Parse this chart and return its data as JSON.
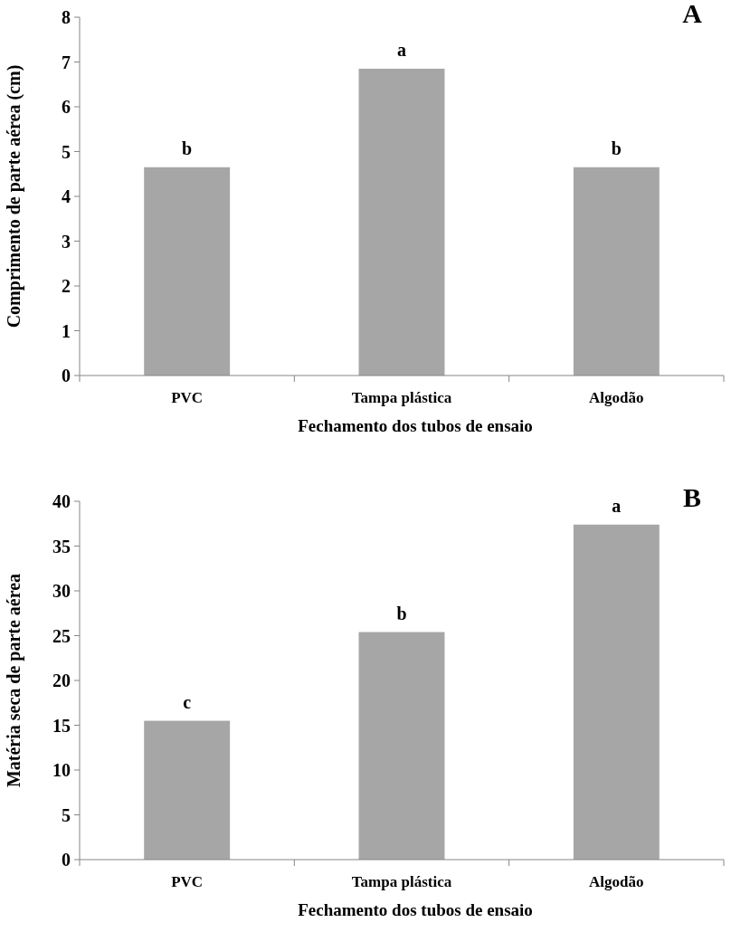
{
  "chart_data": [
    {
      "type": "bar",
      "title": "A",
      "categories": [
        "PVC",
        "Tampa plástica",
        "Algodão"
      ],
      "values": [
        4.65,
        6.85,
        4.65
      ],
      "color": "#a6a6a6",
      "ylim": [
        0,
        8
      ],
      "yticks": [
        0,
        1,
        2,
        3,
        4,
        5,
        6,
        7,
        8
      ],
      "ylabel": "Comprimento de parte aérea (cm)",
      "xlabel": "Fechamento dos tubos de ensaio",
      "grid": false,
      "annotations": [
        {
          "text": "b",
          "x": "PVC",
          "y": 4.65
        },
        {
          "text": "a",
          "x": "Tampa plástica",
          "y": 6.85
        },
        {
          "text": "b",
          "x": "Algodão",
          "y": 4.65
        }
      ]
    },
    {
      "type": "bar",
      "title": "B",
      "categories": [
        "PVC",
        "Tampa plástica",
        "Algodão"
      ],
      "values": [
        15.5,
        25.4,
        37.4
      ],
      "color": "#a6a6a6",
      "ylim": [
        0,
        40
      ],
      "yticks": [
        0,
        5,
        10,
        15,
        20,
        25,
        30,
        35,
        40
      ],
      "ylabel": "Matéria seca de parte aérea",
      "xlabel": "Fechamento dos tubos de ensaio",
      "grid": false,
      "annotations": [
        {
          "text": "c",
          "x": "PVC",
          "y": 15.5
        },
        {
          "text": "b",
          "x": "Tampa plástica",
          "y": 25.4
        },
        {
          "text": "a",
          "x": "Algodão",
          "y": 37.4
        }
      ]
    }
  ]
}
